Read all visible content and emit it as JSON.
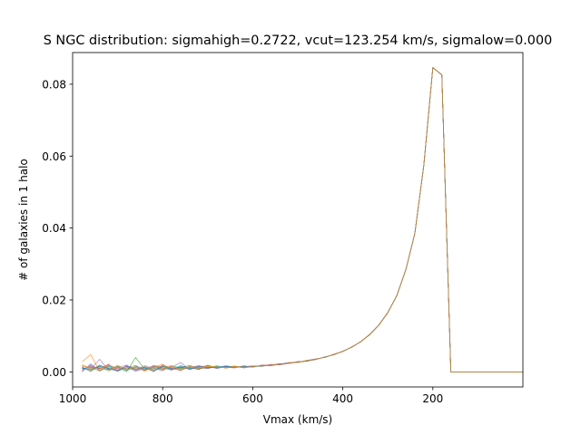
{
  "chart_data": {
    "type": "line",
    "title": "S NGC distribution: sigmahigh=0.2722, vcut=123.254 km/s, sigmalow=0.000",
    "xlabel": "Vmax (km/s)",
    "ylabel": "# of galaxies in 1 halo",
    "xlim": [
      1000,
      0
    ],
    "ylim": [
      -0.0042,
      0.0888
    ],
    "x_ticks": [
      1000,
      800,
      600,
      400,
      200
    ],
    "x_tick_labels": [
      "1000",
      "800",
      "600",
      "400",
      "200"
    ],
    "y_ticks": [
      0.0,
      0.02,
      0.04,
      0.06,
      0.08
    ],
    "y_tick_labels": [
      "0.00",
      "0.02",
      "0.04",
      "0.06",
      "0.08"
    ],
    "grid": false,
    "legend": "none",
    "x": [
      979,
      960,
      940,
      920,
      900,
      880,
      860,
      840,
      820,
      800,
      780,
      760,
      740,
      720,
      700,
      680,
      660,
      640,
      620,
      600,
      580,
      560,
      540,
      520,
      500,
      480,
      460,
      440,
      420,
      400,
      380,
      360,
      340,
      320,
      300,
      280,
      260,
      240,
      220,
      200,
      180,
      160,
      150,
      120,
      80,
      40,
      0
    ],
    "series": [
      {
        "color": "#1f77b4",
        "values": [
          0.0,
          0.0022,
          0.0004,
          0.0016,
          0.0002,
          0.0012,
          0.0003,
          0.0015,
          0.0006,
          0.0014,
          0.0008,
          0.0011,
          0.0018,
          0.0009,
          0.0015,
          0.0012,
          0.0017,
          0.0013,
          0.0015,
          0.0014,
          0.0018,
          0.0019,
          0.0022,
          0.0024,
          0.0027,
          0.0031,
          0.0035,
          0.0041,
          0.0048,
          0.0057,
          0.0069,
          0.0084,
          0.0104,
          0.013,
          0.0165,
          0.0212,
          0.0284,
          0.0385,
          0.0575,
          0.0846,
          0.0826,
          0.0,
          0.0,
          0.0,
          0.0,
          0.0,
          0.0
        ]
      },
      {
        "color": "#ff7f0e",
        "values": [
          0.0028,
          0.0048,
          0.0002,
          0.0018,
          0.0009,
          0.0004,
          0.0016,
          0.0002,
          0.0013,
          0.0021,
          0.0006,
          0.0014,
          0.0009,
          0.0016,
          0.0012,
          0.0017,
          0.001,
          0.0015,
          0.0013,
          0.0016,
          0.0016,
          0.002,
          0.002,
          0.0025,
          0.0026,
          0.003,
          0.0036,
          0.004,
          0.0049,
          0.0056,
          0.007,
          0.0083,
          0.0105,
          0.0129,
          0.0166,
          0.0211,
          0.0285,
          0.0384,
          0.0576,
          0.0845,
          0.0827,
          0.0,
          0.0,
          0.0,
          0.0,
          0.0,
          0.0
        ]
      },
      {
        "color": "#2ca02c",
        "values": [
          0.0012,
          0.0003,
          0.0019,
          0.0008,
          0.0014,
          0.0001,
          0.004,
          0.0007,
          0.0011,
          0.0005,
          0.0017,
          0.0009,
          0.0012,
          0.0006,
          0.0019,
          0.0011,
          0.0014,
          0.0016,
          0.0011,
          0.0015,
          0.0017,
          0.0018,
          0.0023,
          0.0023,
          0.0028,
          0.003,
          0.0034,
          0.0042,
          0.0047,
          0.0058,
          0.0068,
          0.0085,
          0.0103,
          0.0131,
          0.0164,
          0.0213,
          0.0283,
          0.0386,
          0.0574,
          0.0847,
          0.0825,
          0.0,
          0.0,
          0.0,
          0.0,
          0.0,
          0.0
        ]
      },
      {
        "color": "#d62728",
        "values": [
          0.0005,
          0.0016,
          0.0009,
          0.0021,
          0.0003,
          0.0017,
          0.0008,
          0.0012,
          0.0001,
          0.0019,
          0.001,
          0.0004,
          0.0015,
          0.0012,
          0.0009,
          0.0016,
          0.0013,
          0.0011,
          0.0017,
          0.0013,
          0.0019,
          0.0017,
          0.0021,
          0.0026,
          0.0026,
          0.0032,
          0.0036,
          0.004,
          0.0049,
          0.0057,
          0.0069,
          0.0084,
          0.0104,
          0.013,
          0.0165,
          0.0212,
          0.0284,
          0.0385,
          0.0575,
          0.0846,
          0.0826,
          0.0,
          0.0,
          0.0,
          0.0,
          0.0,
          0.0
        ]
      },
      {
        "color": "#9467bd",
        "values": [
          0.0018,
          0.0007,
          0.0035,
          0.0004,
          0.0011,
          0.0019,
          0.0002,
          0.0009,
          0.0016,
          0.0007,
          0.0013,
          0.0026,
          0.0006,
          0.0014,
          0.0017,
          0.0009,
          0.0015,
          0.0012,
          0.0014,
          0.0017,
          0.0015,
          0.0021,
          0.0019,
          0.0024,
          0.0029,
          0.0029,
          0.0035,
          0.0041,
          0.0048,
          0.0057,
          0.0069,
          0.0084,
          0.0104,
          0.013,
          0.0165,
          0.0212,
          0.0284,
          0.0385,
          0.0575,
          0.0846,
          0.0826,
          0.0,
          0.0,
          0.0,
          0.0,
          0.0,
          0.0
        ]
      },
      {
        "color": "#8c564b",
        "values": [
          0.0009,
          0.0012,
          0.0011,
          0.0006,
          0.0016,
          0.0008,
          0.0013,
          0.0004,
          0.0018,
          0.0011,
          0.0005,
          0.0017,
          0.0011,
          0.0008,
          0.0013,
          0.0014,
          0.0012,
          0.0014,
          0.0012,
          0.0015,
          0.0016,
          0.0019,
          0.0022,
          0.0024,
          0.0027,
          0.0031,
          0.0035,
          0.0041,
          0.0048,
          0.0057,
          0.0069,
          0.0084,
          0.0104,
          0.013,
          0.0165,
          0.0212,
          0.0284,
          0.0385,
          0.0575,
          0.0846,
          0.0826,
          0.0,
          0.0,
          0.0,
          0.0,
          0.0,
          0.0
        ]
      },
      {
        "color": "#e377c2",
        "values": [
          0.0002,
          0.0019,
          0.0006,
          0.0013,
          0.0008,
          0.0015,
          0.0005,
          0.0018,
          0.0009,
          0.0003,
          0.0016,
          0.0007,
          0.0013,
          0.0017,
          0.0011,
          0.0013,
          0.0016,
          0.0012,
          0.0016,
          0.0013,
          0.0017,
          0.002,
          0.0021,
          0.0025,
          0.0027,
          0.0031,
          0.0034,
          0.0041,
          0.0048,
          0.0057,
          0.0069,
          0.0084,
          0.0104,
          0.013,
          0.0165,
          0.0212,
          0.0284,
          0.0385,
          0.0575,
          0.0846,
          0.0826,
          0.0,
          0.0,
          0.0,
          0.0,
          0.0,
          0.0
        ]
      },
      {
        "color": "#7f7f7f",
        "values": [
          0.0014,
          0.0001,
          0.0017,
          0.001,
          0.0005,
          0.0011,
          0.0018,
          0.0006,
          0.0012,
          0.0016,
          0.0009,
          0.0012,
          0.0007,
          0.0015,
          0.0013,
          0.0011,
          0.0014,
          0.0015,
          0.0013,
          0.0014,
          0.0018,
          0.0018,
          0.0022,
          0.0023,
          0.0028,
          0.003,
          0.0036,
          0.004,
          0.0048,
          0.0057,
          0.0069,
          0.0084,
          0.0104,
          0.013,
          0.0165,
          0.0212,
          0.0284,
          0.0385,
          0.0575,
          0.0846,
          0.0826,
          0.0,
          0.0,
          0.0,
          0.0,
          0.0,
          0.0
        ]
      },
      {
        "color": "#bcbd22",
        "values": [
          0.0021,
          0.0009,
          0.0013,
          0.0002,
          0.0019,
          0.0006,
          0.0011,
          0.0014,
          0.0004,
          0.0012,
          0.0018,
          0.0005,
          0.0016,
          0.001,
          0.0014,
          0.0015,
          0.0011,
          0.0016,
          0.0012,
          0.0016,
          0.0016,
          0.0019,
          0.0021,
          0.0025,
          0.0026,
          0.0032,
          0.0035,
          0.0041,
          0.0048,
          0.0057,
          0.0069,
          0.0084,
          0.0104,
          0.013,
          0.0165,
          0.0212,
          0.0284,
          0.0385,
          0.0575,
          0.0846,
          0.0826,
          0.0,
          0.0,
          0.0,
          0.0,
          0.0,
          0.0
        ]
      },
      {
        "color": "#17becf",
        "values": [
          0.0007,
          0.0014,
          0.0002,
          0.0015,
          0.0012,
          0.0003,
          0.0015,
          0.0009,
          0.0014,
          0.0008,
          0.0012,
          0.0015,
          0.001,
          0.0013,
          0.001,
          0.0016,
          0.0013,
          0.0013,
          0.0015,
          0.0013,
          0.0017,
          0.0019,
          0.0022,
          0.0024,
          0.0027,
          0.0031,
          0.0035,
          0.0041,
          0.0048,
          0.0057,
          0.0069,
          0.0084,
          0.0104,
          0.013,
          0.0165,
          0.0212,
          0.0284,
          0.0385,
          0.0575,
          0.0846,
          0.0826,
          0.0,
          0.0,
          0.0,
          0.0,
          0.0,
          0.0
        ]
      },
      {
        "color": "#1f77b4",
        "values": [
          0.0011,
          0.0006,
          0.0015,
          0.0009,
          0.0002,
          0.0016,
          0.0007,
          0.0012,
          0.0002,
          0.0015,
          0.0007,
          0.0013,
          0.0008,
          0.0017,
          0.0012,
          0.0012,
          0.0015,
          0.0014,
          0.0014,
          0.0015,
          0.0017,
          0.0019,
          0.0022,
          0.0024,
          0.0027,
          0.0031,
          0.0035,
          0.0041,
          0.0048,
          0.0057,
          0.0069,
          0.0084,
          0.0104,
          0.013,
          0.0165,
          0.0212,
          0.0284,
          0.0385,
          0.0575,
          0.0846,
          0.0826,
          0.0,
          0.0,
          0.0,
          0.0,
          0.0,
          0.0
        ]
      },
      {
        "color": "#ff7f0e",
        "values": [
          0.0016,
          0.0011,
          0.0004,
          0.0019,
          0.0009,
          0.0006,
          0.0014,
          0.0003,
          0.0017,
          0.0009,
          0.0014,
          0.0006,
          0.0013,
          0.0011,
          0.0016,
          0.0013,
          0.0012,
          0.0015,
          0.0013,
          0.0014,
          0.0018,
          0.0019,
          0.0021,
          0.0024,
          0.0027,
          0.0031,
          0.0035,
          0.0041,
          0.0048,
          0.0057,
          0.0069,
          0.0084,
          0.0104,
          0.013,
          0.0165,
          0.0212,
          0.0284,
          0.0385,
          0.0575,
          0.0846,
          0.0826,
          0.0,
          0.0,
          0.0,
          0.0,
          0.0,
          0.0
        ]
      }
    ]
  }
}
